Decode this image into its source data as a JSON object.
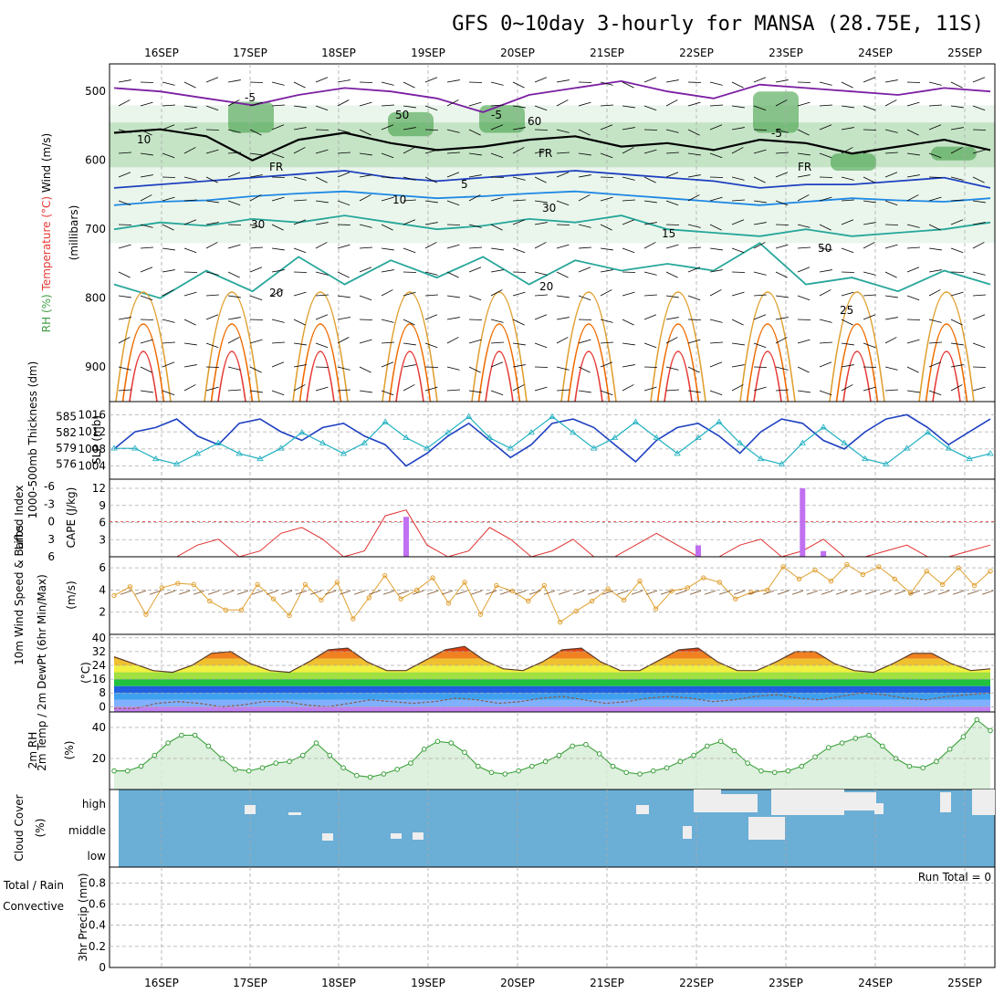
{
  "title": "GFS 0~10day 3-hourly for MANSA (28.75E, 11S)",
  "days": [
    "16SEP",
    "17SEP",
    "18SEP",
    "19SEP",
    "20SEP",
    "21SEP",
    "22SEP",
    "23SEP",
    "24SEP",
    "25SEP"
  ],
  "colors": {
    "grid": "#aaaaaa",
    "temp_cold": "#7b1fa2",
    "temp_mid": "#1565c0",
    "temp_warm": "#26a69a",
    "temp_hot": "#e0a030",
    "temp_vhot": "#e53935",
    "rh_light": "#e8f5e9",
    "rh_mid": "#a5d6a7",
    "rh_dark": "#43a047",
    "slp": "#1e40c0",
    "thickness": "#20b0c0",
    "lifted": "#e03030",
    "cape": "#c070f0",
    "wind_speed": "#e0a030",
    "wind_barb": "#7a4a20",
    "rh2m": "#3aa03a",
    "cloud": "#6baed6",
    "cloud_gap": "#eeeeee"
  },
  "chart_data": [
    {
      "type": "contour",
      "panel": "upper-air",
      "ylabel_parts": [
        "RH (%)",
        "Temperature (°C)",
        "Wind (m/s)"
      ],
      "yunit": "(millibars)",
      "yticks": [
        500,
        600,
        700,
        800,
        900
      ],
      "ylim": [
        1000,
        460
      ],
      "contour_labels": [
        "-5",
        "-5",
        "-5",
        "FR",
        "FR",
        "FR",
        "5",
        "10",
        "15",
        "20",
        "20",
        "25",
        "10",
        "30",
        "50",
        "60",
        "30",
        "50"
      ],
      "isotherms": [
        {
          "label": "-5",
          "level_mb": [
            495,
            500,
            510,
            520,
            505,
            495,
            500,
            510,
            530,
            505,
            495,
            485,
            500,
            510,
            490,
            495,
            500,
            505,
            495,
            500
          ]
        },
        {
          "label": "FR",
          "level_mb": [
            560,
            555,
            565,
            600,
            570,
            560,
            575,
            585,
            580,
            570,
            565,
            580,
            575,
            585,
            570,
            575,
            590,
            580,
            570,
            585
          ]
        },
        {
          "label": "5",
          "level_mb": [
            640,
            635,
            630,
            625,
            620,
            615,
            625,
            630,
            625,
            620,
            615,
            620,
            625,
            630,
            640,
            635,
            635,
            630,
            625,
            640
          ]
        },
        {
          "label": "10",
          "level_mb": [
            665,
            660,
            658,
            652,
            648,
            645,
            650,
            655,
            652,
            648,
            645,
            650,
            655,
            660,
            665,
            660,
            655,
            658,
            660,
            655
          ]
        },
        {
          "label": "15",
          "level_mb": [
            700,
            690,
            695,
            685,
            690,
            680,
            690,
            700,
            695,
            685,
            690,
            680,
            700,
            705,
            710,
            700,
            710,
            705,
            700,
            690
          ]
        },
        {
          "label": "20",
          "level_mb": [
            780,
            800,
            760,
            790,
            740,
            780,
            745,
            770,
            740,
            780,
            745,
            760,
            750,
            760,
            720,
            780,
            770,
            790,
            760,
            780
          ]
        }
      ],
      "x": [
        "16SEP",
        "16SEP",
        "17SEP",
        "17SEP",
        "18SEP",
        "18SEP",
        "19SEP",
        "19SEP",
        "20SEP",
        "20SEP",
        "21SEP",
        "21SEP",
        "22SEP",
        "22SEP",
        "23SEP",
        "23SEP",
        "24SEP",
        "24SEP",
        "25SEP",
        "25SEP"
      ]
    },
    {
      "type": "line",
      "panel": "pressure",
      "ylabel_left": "1000-500mb Thickness (dm)",
      "ylabel_right": "SLP (mb)",
      "yticks_left": [
        576,
        579,
        582,
        585
      ],
      "yticks_right": [
        1004,
        1008,
        1012,
        1016
      ],
      "series": [
        {
          "name": "SLP (mb)",
          "values": [
            1008,
            1012,
            1013,
            1015,
            1011,
            1009,
            1014,
            1015,
            1012,
            1010,
            1013,
            1014,
            1011,
            1009,
            1004,
            1007,
            1011,
            1014,
            1010,
            1006,
            1009,
            1014,
            1015,
            1013,
            1009,
            1005,
            1010,
            1013,
            1014,
            1011,
            1007,
            1012,
            1015,
            1014,
            1010,
            1008,
            1012,
            1015,
            1016,
            1013,
            1009,
            1012,
            1015
          ]
        },
        {
          "name": "Thickness (dm)",
          "values": [
            579,
            579,
            577,
            576,
            578,
            580,
            578,
            577,
            579,
            582,
            580,
            578,
            580,
            584,
            581,
            579,
            582,
            585,
            581,
            579,
            582,
            585,
            582,
            579,
            581,
            584,
            581,
            578,
            581,
            584,
            580,
            577,
            576,
            580,
            583,
            580,
            577,
            576,
            579,
            582,
            579,
            577,
            578
          ]
        }
      ]
    },
    {
      "type": "bar",
      "panel": "stability",
      "ylabel_left": "Lifted Index",
      "ylabel_right": "CAPE (J/kg)",
      "yticks_left": [
        -6,
        -3,
        0,
        3,
        6
      ],
      "yticks_right": [
        3,
        6,
        9,
        12
      ],
      "series": [
        {
          "name": "Lifted Index",
          "values": [
            6,
            6,
            6,
            6,
            4,
            3,
            6,
            5,
            2,
            1,
            3,
            6,
            5,
            -1,
            -2,
            4,
            6,
            5,
            1,
            3,
            6,
            5,
            3,
            6,
            6,
            4,
            2,
            4,
            6,
            6,
            4,
            3,
            6,
            5,
            3,
            6,
            6,
            5,
            4,
            6,
            6,
            5,
            4
          ]
        },
        {
          "name": "CAPE (J/kg)",
          "values": [
            0,
            0,
            0,
            0,
            0,
            0,
            0,
            0,
            0,
            0,
            0,
            0,
            0,
            0,
            7,
            0,
            0,
            0,
            0,
            0,
            0,
            0,
            0,
            0,
            0,
            0,
            0,
            0,
            2,
            0,
            0,
            0,
            0,
            12,
            1,
            0,
            0,
            0,
            0,
            0,
            0,
            0,
            0
          ]
        }
      ]
    },
    {
      "type": "line",
      "panel": "wind10m",
      "ylabel": "10m Wind Speed & Barbs",
      "yunit": "(m/s)",
      "yticks": [
        2,
        4,
        6
      ],
      "ylim": [
        0,
        7
      ],
      "series": [
        {
          "name": "10m Wind Speed (m/s)",
          "values": [
            3.5,
            4.3,
            1.8,
            4.2,
            4.6,
            4.5,
            3.0,
            2.2,
            2.2,
            4.5,
            3.2,
            1.7,
            4.5,
            3.1,
            4.7,
            1.4,
            3.3,
            5.3,
            3.2,
            4.0,
            5.1,
            2.8,
            4.7,
            1.8,
            4.4,
            3.9,
            3.0,
            4.4,
            1.1,
            2.1,
            3.0,
            4.1,
            3.1,
            4.8,
            2.3,
            3.9,
            4.2,
            5.1,
            4.7,
            3.2,
            3.8,
            4.0,
            6.1,
            5.0,
            5.8,
            4.8,
            6.3,
            5.4,
            6.1,
            5.0,
            3.7,
            5.7,
            4.5,
            6.0,
            4.4,
            5.7
          ]
        }
      ]
    },
    {
      "type": "area",
      "panel": "temp2m",
      "ylabel": "2m Temp / 2m DewPt (6hr Min/Max)",
      "yunit": "(°C)",
      "yticks": [
        0,
        8,
        16,
        24,
        32,
        40
      ],
      "ylim": [
        -3,
        42
      ],
      "series": [
        {
          "name": "2m Temp",
          "values": [
            29,
            25,
            21,
            20,
            24,
            31,
            32,
            25,
            21,
            20,
            26,
            33,
            34,
            26,
            21,
            21,
            27,
            33,
            35,
            27,
            22,
            21,
            26,
            33,
            34,
            26,
            21,
            21,
            27,
            33,
            34,
            26,
            21,
            21,
            26,
            32,
            32,
            25,
            21,
            20,
            25,
            31,
            31,
            25,
            21,
            22
          ]
        },
        {
          "name": "2m DewPt",
          "values": [
            -1,
            -1,
            2,
            3,
            2,
            0,
            1,
            3,
            3,
            1,
            0,
            2,
            4,
            3,
            2,
            3,
            5,
            4,
            2,
            3,
            5,
            6,
            4,
            2,
            3,
            5,
            6,
            5,
            3,
            4,
            6,
            7,
            5,
            4,
            6,
            8,
            7,
            5,
            4,
            6,
            7,
            8
          ]
        }
      ]
    },
    {
      "type": "area",
      "panel": "rh2m",
      "ylabel": "2m RH",
      "yunit": "(%)",
      "yticks": [
        20,
        40
      ],
      "ylim": [
        0,
        50
      ],
      "series": [
        {
          "name": "2m RH",
          "values": [
            12,
            12,
            15,
            22,
            30,
            35,
            35,
            28,
            20,
            13,
            12,
            14,
            17,
            18,
            22,
            30,
            22,
            14,
            9,
            8,
            10,
            13,
            17,
            26,
            31,
            30,
            24,
            15,
            11,
            10,
            12,
            15,
            18,
            22,
            28,
            29,
            23,
            15,
            11,
            10,
            12,
            14,
            18,
            22,
            28,
            31,
            25,
            17,
            12,
            11,
            12,
            15,
            21,
            27,
            30,
            33,
            35,
            28,
            20,
            15,
            14,
            18,
            26,
            34,
            45,
            38
          ]
        }
      ]
    },
    {
      "type": "heatmap",
      "panel": "cloud",
      "ylabel": "Cloud Cover",
      "yunit": "(%)",
      "rows": [
        "high",
        "middle",
        "low"
      ]
    },
    {
      "type": "bar",
      "panel": "precip",
      "ylabel": "3hr Precip (mm)",
      "legend": [
        "Total / Rain",
        "Convective"
      ],
      "yticks": [
        0,
        0.2,
        0.4,
        0.6,
        0.8
      ],
      "ylim": [
        0,
        0.95
      ],
      "annotation": "Run Total = 0",
      "values": [
        0
      ]
    }
  ]
}
